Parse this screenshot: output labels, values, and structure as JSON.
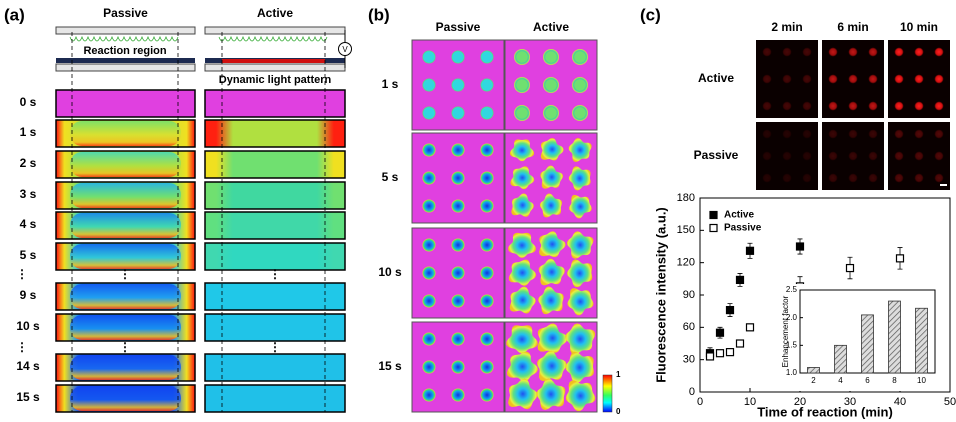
{
  "panel_a": {
    "label": "(a)",
    "columns": [
      "Passive",
      "Active"
    ],
    "reaction_region": "Reaction region",
    "light_pattern": "Dynamic light pattern",
    "voltage": "V",
    "rows": [
      "0 s",
      "1 s",
      "2 s",
      "3 s",
      "4 s",
      "5 s",
      "⋮",
      "9 s",
      "10 s",
      "⋮",
      "14 s",
      "15 s"
    ]
  },
  "panel_b": {
    "label": "(b)",
    "columns": [
      "Passive",
      "Active"
    ],
    "rows": [
      "1 s",
      "5 s",
      "10 s",
      "15 s"
    ],
    "colorbar_ticks": [
      1,
      0
    ]
  },
  "panel_c": {
    "label": "(c)",
    "columns": [
      "2 min",
      "6 min",
      "10 min"
    ],
    "rows": [
      "Active",
      "Passive"
    ]
  },
  "chart_data": [
    {
      "type": "scatter",
      "x_label": "Time of reaction (min)",
      "y_label": "Fluorescence intensity (a.u.)",
      "xlim": [
        0,
        50
      ],
      "xticks": [
        0,
        10,
        20,
        30,
        40,
        50
      ],
      "ylim": [
        0,
        180
      ],
      "yticks": [
        0,
        30,
        60,
        90,
        120,
        150,
        180
      ],
      "legend": "upper-left",
      "series": [
        {
          "name": "Active",
          "color": "#000000",
          "filled": true,
          "x": [
            2,
            4,
            6,
            8,
            10,
            20
          ],
          "values": [
            36,
            55,
            76,
            104,
            131,
            135
          ],
          "errors": [
            5,
            5,
            6,
            6,
            7,
            7
          ]
        },
        {
          "name": "Passive",
          "color": "#000000",
          "filled": false,
          "x": [
            2,
            4,
            6,
            8,
            10,
            20,
            30,
            40
          ],
          "values": [
            33,
            36,
            37,
            45,
            60,
            98,
            115,
            124
          ],
          "errors": [
            3,
            3,
            3,
            3,
            3,
            9,
            10,
            10
          ]
        }
      ]
    },
    {
      "type": "bar",
      "y_label": "Enhancement factor",
      "categories": [
        "2",
        "4",
        "6",
        "8",
        "10"
      ],
      "values": [
        1.1,
        1.5,
        2.05,
        2.3,
        2.17
      ],
      "ylim": [
        1,
        2.5
      ],
      "yticks": [
        {
          "value": 1,
          "label": "1.0"
        },
        {
          "value": 1.5,
          "label": "1.5"
        },
        {
          "value": 2,
          "label": "2.0"
        },
        {
          "value": 2.5,
          "label": "2.5"
        }
      ],
      "color": "#999999"
    }
  ]
}
